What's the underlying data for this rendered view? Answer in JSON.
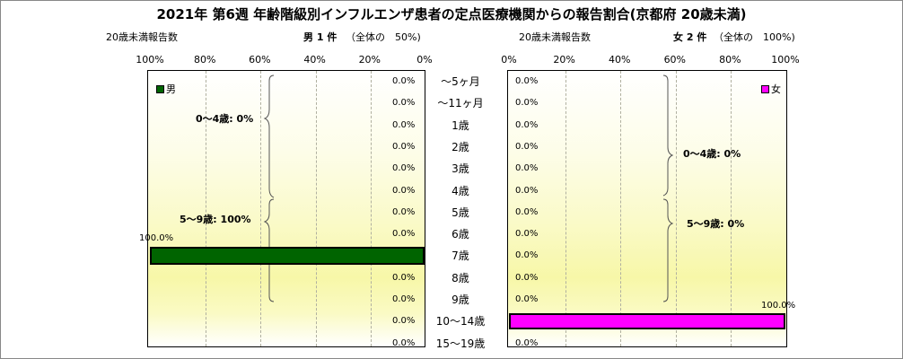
{
  "title": "2021年 第6週 年齢階級別インフルエンザ患者の定点医療機関からの報告割合(京都府 20歳未満)",
  "left_header": {
    "sub": "20歳未満報告数",
    "main": "男 1 件",
    "share": "（全体の　50%)"
  },
  "right_header": {
    "sub": "20歳未満報告数",
    "main": "女 2 件",
    "share": "（全体の　100%)"
  },
  "chart_data": [
    {
      "type": "bar",
      "orientation": "horizontal",
      "direction": "right-to-left",
      "name": "男",
      "color": "#006400",
      "categories": [
        "～5ヶ月",
        "～11ヶ月",
        "1歳",
        "2歳",
        "3歳",
        "4歳",
        "5歳",
        "6歳",
        "7歳",
        "8歳",
        "9歳",
        "10～14歳",
        "15～19歳"
      ],
      "values": [
        0,
        0,
        0,
        0,
        0,
        0,
        0,
        0,
        100,
        0,
        0,
        0,
        0
      ],
      "value_labels": [
        "0.0%",
        "0.0%",
        "0.0%",
        "0.0%",
        "0.0%",
        "0.0%",
        "0.0%",
        "0.0%",
        "100.0%",
        "0.0%",
        "0.0%",
        "0.0%",
        "0.0%"
      ],
      "xlim": [
        0,
        100
      ],
      "tick_labels": [
        "100%",
        "80%",
        "60%",
        "40%",
        "20%",
        "0%"
      ],
      "legend": "top-left",
      "annotations": [
        "0～4歳: 0%",
        "5～9歳: 100%"
      ]
    },
    {
      "type": "bar",
      "orientation": "horizontal",
      "direction": "left-to-right",
      "name": "女",
      "color": "#ff00ff",
      "categories": [
        "～5ヶ月",
        "～11ヶ月",
        "1歳",
        "2歳",
        "3歳",
        "4歳",
        "5歳",
        "6歳",
        "7歳",
        "8歳",
        "9歳",
        "10～14歳",
        "15～19歳"
      ],
      "values": [
        0,
        0,
        0,
        0,
        0,
        0,
        0,
        0,
        0,
        0,
        0,
        100,
        0
      ],
      "value_labels": [
        "0.0%",
        "0.0%",
        "0.0%",
        "0.0%",
        "0.0%",
        "0.0%",
        "0.0%",
        "0.0%",
        "0.0%",
        "0.0%",
        "0.0%",
        "100.0%",
        "0.0%"
      ],
      "xlim": [
        0,
        100
      ],
      "tick_labels": [
        "0%",
        "20%",
        "40%",
        "60%",
        "80%",
        "100%"
      ],
      "legend": "top-right",
      "annotations": [
        "0～4歳: 0%",
        "5～9歳: 0%"
      ]
    }
  ]
}
